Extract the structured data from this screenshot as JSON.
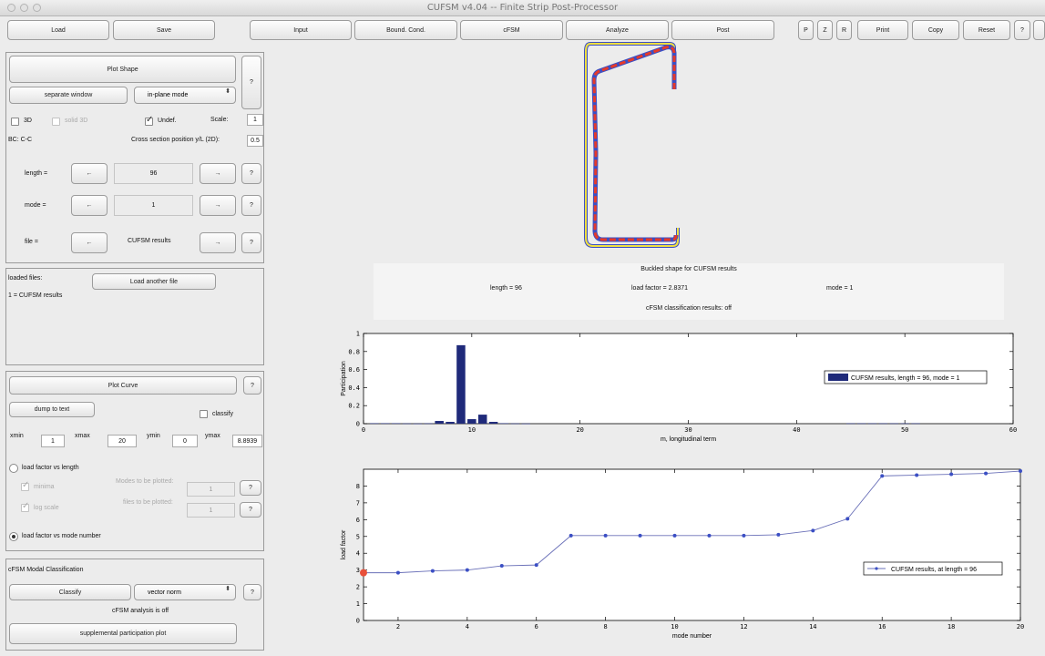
{
  "window": {
    "title": "CUFSM v4.04 -- Finite Strip Post-Processor"
  },
  "toolbar": {
    "load": "Load",
    "save": "Save",
    "input": "Input",
    "bound_cond": "Bound. Cond.",
    "cfsm": "cFSM",
    "analyze": "Analyze",
    "post": "Post",
    "p": "P",
    "z": "Z",
    "r": "R",
    "print": "Print",
    "copy": "Copy",
    "reset": "Reset",
    "help": "?"
  },
  "shape_panel": {
    "plot_shape": "Plot Shape",
    "help": "?",
    "separate_window": "separate window",
    "mode_select": "in-plane mode",
    "cb_3d": "3D",
    "cb_solid3d": "solid 3D",
    "cb_undef": "Undef.",
    "scale_label": "Scale:",
    "scale_value": "1",
    "bc_label": "BC: C-C",
    "cross_label": "Cross section position y/L (2D):",
    "cross_value": "0.5",
    "length_label": "length =",
    "length_value": "96",
    "mode_label": "mode =",
    "mode_value": "1",
    "file_label": "file =",
    "file_value": "CUFSM results",
    "left_arrow": "←",
    "right_arrow": "→"
  },
  "files_panel": {
    "loaded_label": "loaded files:",
    "load_another": "Load another file",
    "file_entry": "1 = CUFSM results"
  },
  "curve_panel": {
    "plot_curve": "Plot Curve",
    "help": "?",
    "dump": "dump to text",
    "classify": "classify",
    "xmin_label": "xmin",
    "xmin": "1",
    "xmax_label": "xmax",
    "xmax": "20",
    "ymin_label": "ymin",
    "ymin": "0",
    "ymax_label": "ymax",
    "ymax": "8.8939",
    "lf_length": "load factor vs length",
    "minima": "minima",
    "log_scale": "log scale",
    "modes_plotted": "Modes to be plotted:",
    "modes_value": "1",
    "files_plotted": "files to be plotted:",
    "files_value": "1",
    "lf_mode": "load factor vs mode number"
  },
  "cfsm_panel": {
    "title": "cFSM Modal Classification",
    "classify": "Classify",
    "norm_select": "vector norm",
    "help": "?",
    "status": "cFSM analysis is off",
    "supplemental": "supplemental participation plot"
  },
  "info": {
    "title": "Buckled shape for CUFSM results",
    "length": "length = 96",
    "load_factor": "load factor = 2.8371",
    "mode": "mode = 1",
    "classification": "cFSM classification results: off"
  },
  "participation_chart": {
    "chart_data": {
      "type": "bar",
      "xlabel": "m, longitudinal term",
      "ylabel": "Participation",
      "xlim": [
        0,
        60
      ],
      "ylim": [
        0,
        1
      ],
      "xticks": [
        0,
        10,
        20,
        30,
        40,
        50,
        60
      ],
      "yticks": [
        0,
        0.2,
        0.4,
        0.6,
        0.8,
        1
      ],
      "legend": "CUFSM results, length = 96, mode = 1",
      "legend_position": "right",
      "color": "#1f2a7a",
      "x": [
        1,
        2,
        3,
        4,
        5,
        6,
        7,
        8,
        9,
        10,
        11,
        12,
        13,
        14,
        15,
        45,
        46,
        47,
        48,
        49,
        50,
        51
      ],
      "values": [
        0.005,
        0.005,
        0.005,
        0.003,
        0.002,
        0.004,
        0.03,
        0.02,
        0.87,
        0.05,
        0.1,
        0.02,
        0.005,
        0.003,
        0.002,
        0.004,
        0.004,
        0.004,
        0.004,
        0.004,
        0.004,
        0.004
      ]
    }
  },
  "load_chart": {
    "chart_data": {
      "type": "line",
      "xlabel": "mode number",
      "ylabel": "load factor",
      "xlim": [
        1,
        20
      ],
      "ylim": [
        0,
        9
      ],
      "xticks": [
        2,
        4,
        6,
        8,
        10,
        12,
        14,
        16,
        18,
        20
      ],
      "yticks": [
        0,
        1,
        2,
        3,
        4,
        5,
        6,
        7,
        8
      ],
      "legend": "CUFSM results, at length = 96",
      "legend_position": "right",
      "color": "#3b4fc4",
      "highlight_color": "#e8503a",
      "x": [
        1,
        2,
        3,
        4,
        5,
        6,
        7,
        8,
        9,
        10,
        11,
        12,
        13,
        14,
        15,
        16,
        17,
        18,
        19,
        20
      ],
      "values": [
        2.84,
        2.84,
        2.95,
        3.0,
        3.25,
        3.3,
        5.05,
        5.05,
        5.05,
        5.05,
        5.05,
        5.05,
        5.1,
        5.35,
        6.05,
        8.6,
        8.65,
        8.7,
        8.75,
        8.89
      ]
    }
  }
}
